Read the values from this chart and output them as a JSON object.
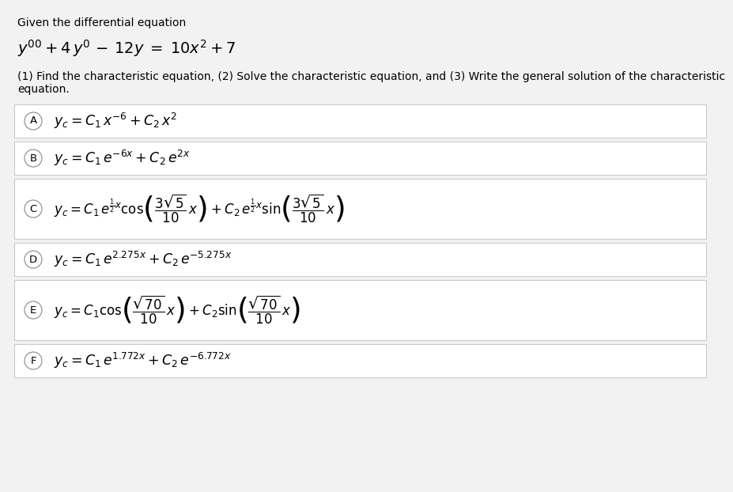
{
  "bg_color": "#e8e8e8",
  "page_bg": "#f2f2f2",
  "box_bg": "#ffffff",
  "box_border": "#cccccc",
  "font_color": "#000000",
  "title": "Given the differential equation",
  "de": "y'' + 4\\,y' \\,-\\, 12y \\;=\\; 10x^2 + 7",
  "instruction_line1": "(1) Find the characteristic equation, (2) Solve the characteristic equation, and (3) Write the general solution of the characteristic",
  "instruction_line2": "equation.",
  "options": [
    {
      "label": "A",
      "formula": "$y_c = C_1\\,x^{-6} + C_2\\,x^2$",
      "tall": false
    },
    {
      "label": "B",
      "formula": "$y_c = C_1\\,e^{-6x} + C_2\\,e^{2x}$",
      "tall": false
    },
    {
      "label": "C",
      "formula": "$y_c = C_1\\,e^{\\frac{1}{2}x}\\cos\\!\\left(\\dfrac{3\\sqrt{5}}{10}\\,x\\right) + C_2\\,e^{\\frac{1}{2}x}\\sin\\!\\left(\\dfrac{3\\sqrt{5}}{10}\\,x\\right)$",
      "tall": true
    },
    {
      "label": "D",
      "formula": "$y_c = C_1\\,e^{2.275x} + C_2\\,e^{-5.275x}$",
      "tall": false
    },
    {
      "label": "E",
      "formula": "$y_c = C_1\\cos\\!\\left(\\dfrac{\\sqrt{70}}{10}\\,x\\right) + C_2\\sin\\!\\left(\\dfrac{\\sqrt{70}}{10}\\,x\\right)$",
      "tall": true
    },
    {
      "label": "F",
      "formula": "$y_c = C_1\\,e^{1.772x} + C_2\\,e^{-6.772x}$",
      "tall": false
    }
  ]
}
